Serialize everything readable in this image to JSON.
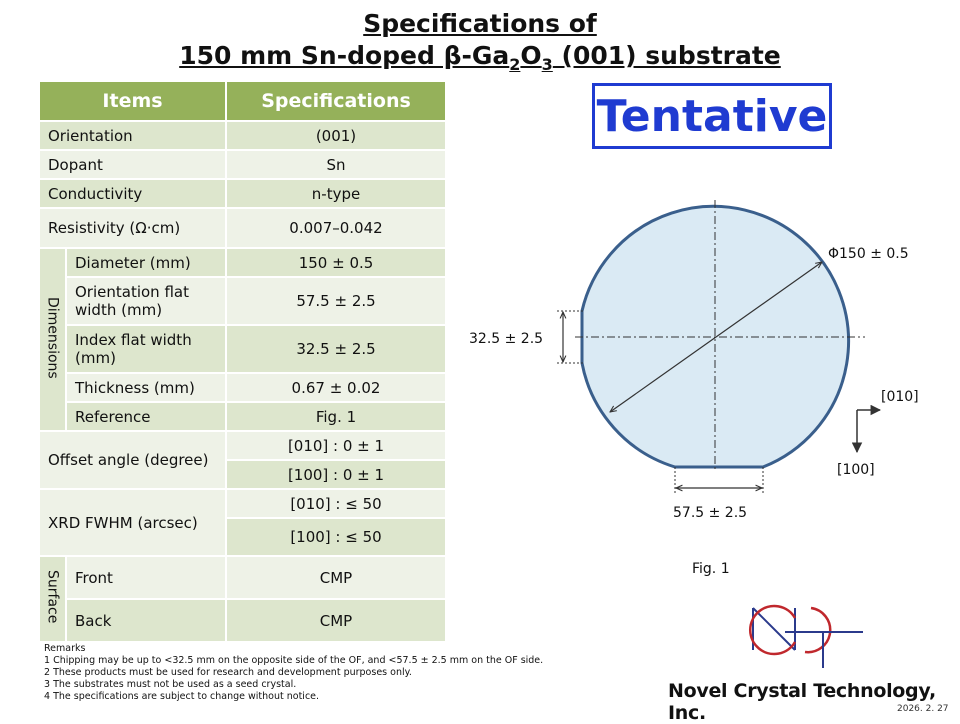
{
  "title": {
    "line1": "Specifications of",
    "line2_pre": "150 mm Sn-doped β-Ga",
    "sub1": "2",
    "mid": "O",
    "sub2": "3",
    "line2_post": " (001) substrate"
  },
  "table": {
    "header_items": "Items",
    "header_specs": "Specifications",
    "orientation_label": "Orientation",
    "orientation_value": "(001)",
    "dopant_label": "Dopant",
    "dopant_value": "Sn",
    "conductivity_label": "Conductivity",
    "conductivity_value": "n-type",
    "resistivity_label": "Resistivity (Ω·cm)",
    "resistivity_value": "0.007–0.042",
    "dimensions_group": "Dimensions",
    "diameter_label": "Diameter (mm)",
    "diameter_value": "150 ± 0.5",
    "of_width_label": "Orientation flat width (mm)",
    "of_width_value": "57.5 ± 2.5",
    "if_width_label": "Index flat width (mm)",
    "if_width_value": "32.5 ± 2.5",
    "thickness_label": "Thickness (mm)",
    "thickness_value": "0.67 ± 0.02",
    "reference_label": "Reference",
    "reference_value": "Fig. 1",
    "offset_label": "Offset angle (degree)",
    "offset_010": "[010] : 0 ± 1",
    "offset_100": "[100] : 0 ± 1",
    "xrd_label": "XRD FWHM (arcsec)",
    "xrd_010": "[010] : ≤ 50",
    "xrd_100": "[100] : ≤ 50",
    "surface_group": "Surface",
    "front_label": "Front",
    "front_value": "CMP",
    "back_label": "Back",
    "back_value": "CMP"
  },
  "tentative": "Tentative",
  "figure": {
    "diameter_label": "Φ150 ± 0.5",
    "index_flat_label": "32.5 ± 2.5",
    "orientation_flat_label": "57.5 ± 2.5",
    "axis_010": "[010]",
    "axis_100": "[100]",
    "caption": "Fig. 1",
    "fill_color": "#daeaf4",
    "stroke_color": "#3a5f8c"
  },
  "remarks": {
    "title": "Remarks",
    "r1": "1 Chipping may be up to <32.5 mm on the opposite side of the OF, and <57.5 ± 2.5 mm on the OF side.",
    "r2": "2 These products must be used for research and development purposes only.",
    "r3": "3 The substrates must not be used as a seed crystal.",
    "r4": "4 The specifications are subject to change without notice."
  },
  "company": "Novel Crystal Technology, Inc.",
  "date": "2026. 2. 27"
}
